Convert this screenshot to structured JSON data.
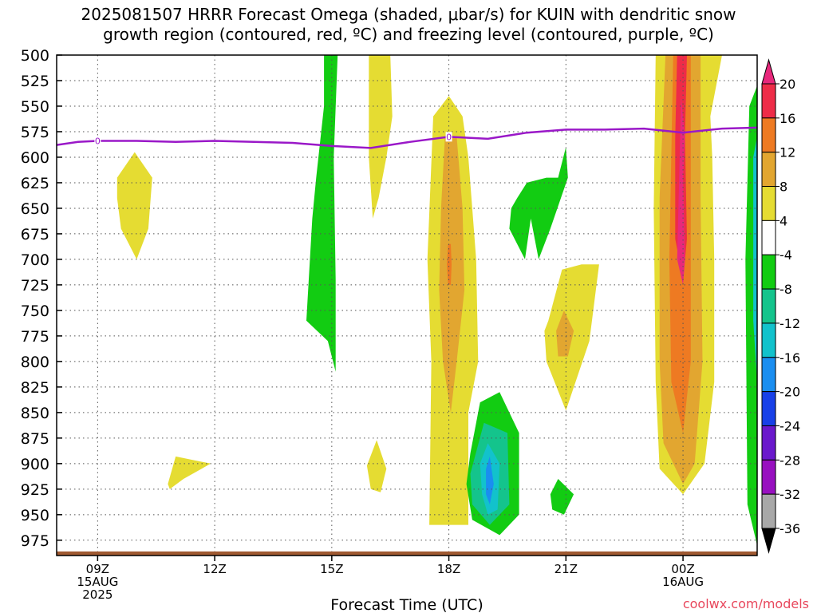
{
  "header": {
    "title_line1": "2025081507 HRRR Forecast Omega (shaded, μbar/s) for KUIN with dendritic snow",
    "title_line2": "growth region (contoured, red, ºC) and freezing level (contoured, purple, ºC)"
  },
  "footer": {
    "credit": "coolwx.com/models"
  },
  "chart_data": {
    "type": "heatmap",
    "title": "2025081507 HRRR Forecast Omega (shaded, μbar/s) for KUIN with dendritic snow growth region (contoured, red, ºC) and freezing level (contoured, purple, ºC)",
    "xlabel": "Forecast Time (UTC)",
    "ylabel": "",
    "x_range_hours": [
      7.95,
      25.9
    ],
    "ylim": [
      500,
      990
    ],
    "y_inverted": true,
    "y_ticks": [
      500,
      525,
      550,
      575,
      600,
      625,
      650,
      675,
      700,
      725,
      750,
      775,
      800,
      825,
      850,
      875,
      900,
      925,
      950,
      975
    ],
    "x_ticks": [
      {
        "hour": 9,
        "lines": [
          "09Z",
          "15AUG",
          "2025"
        ]
      },
      {
        "hour": 12,
        "lines": [
          "12Z"
        ]
      },
      {
        "hour": 15,
        "lines": [
          "15Z"
        ]
      },
      {
        "hour": 18,
        "lines": [
          "18Z"
        ]
      },
      {
        "hour": 21,
        "lines": [
          "21Z"
        ]
      },
      {
        "hour": 24,
        "lines": [
          "00Z",
          "16AUG"
        ]
      }
    ],
    "grid": true,
    "colorbar": {
      "labels": [
        "20",
        "16",
        "12",
        "8",
        "4",
        "-4",
        "-8",
        "-12",
        "-16",
        "-20",
        "-24",
        "-28",
        "-32",
        "-36"
      ],
      "bins": [
        {
          "range": [
            20,
            99
          ],
          "color": "#e8287c"
        },
        {
          "range": [
            16,
            20
          ],
          "color": "#ee2c48"
        },
        {
          "range": [
            12,
            16
          ],
          "color": "#ee7a22"
        },
        {
          "range": [
            8,
            12
          ],
          "color": "#e2a630"
        },
        {
          "range": [
            4,
            8
          ],
          "color": "#e5dc32"
        },
        {
          "range": [
            -4,
            4
          ],
          "color": "#ffffff"
        },
        {
          "range": [
            -8,
            -4
          ],
          "color": "#12cc12"
        },
        {
          "range": [
            -12,
            -8
          ],
          "color": "#14c48c"
        },
        {
          "range": [
            -16,
            -12
          ],
          "color": "#12c2cc"
        },
        {
          "range": [
            -20,
            -16
          ],
          "color": "#1a8ef0"
        },
        {
          "range": [
            -24,
            -20
          ],
          "color": "#1840e8"
        },
        {
          "range": [
            -28,
            -24
          ],
          "color": "#6a18cc"
        },
        {
          "range": [
            -32,
            -28
          ],
          "color": "#9810c0"
        },
        {
          "range": [
            -36,
            -32
          ],
          "color": "#a8a8a8"
        },
        {
          "range": [
            -99,
            -36
          ],
          "color": "#000000"
        }
      ]
    },
    "freezing_level": {
      "color": "#9a18c8",
      "label": "0",
      "label_points": [
        {
          "hour": 9.0,
          "p": 584
        },
        {
          "hour": 18.0,
          "p": 580
        }
      ],
      "points": [
        {
          "hour": 7.95,
          "p": 588
        },
        {
          "hour": 8.5,
          "p": 585
        },
        {
          "hour": 9.0,
          "p": 584
        },
        {
          "hour": 10.0,
          "p": 584
        },
        {
          "hour": 11.0,
          "p": 585
        },
        {
          "hour": 12.0,
          "p": 584
        },
        {
          "hour": 13.0,
          "p": 585
        },
        {
          "hour": 14.0,
          "p": 586
        },
        {
          "hour": 15.0,
          "p": 589
        },
        {
          "hour": 16.0,
          "p": 591
        },
        {
          "hour": 17.0,
          "p": 585
        },
        {
          "hour": 18.0,
          "p": 580
        },
        {
          "hour": 19.0,
          "p": 582
        },
        {
          "hour": 20.0,
          "p": 576
        },
        {
          "hour": 21.0,
          "p": 573
        },
        {
          "hour": 22.0,
          "p": 573
        },
        {
          "hour": 23.0,
          "p": 572
        },
        {
          "hour": 24.0,
          "p": 576
        },
        {
          "hour": 25.0,
          "p": 572
        },
        {
          "hour": 25.9,
          "p": 571
        }
      ]
    },
    "surface": {
      "color": "#a05a32",
      "p_top": 986
    },
    "omega_regions": [
      {
        "color": "#12cc12",
        "points": [
          [
            14.8,
            500
          ],
          [
            15.15,
            500
          ],
          [
            15.05,
            600
          ],
          [
            15.1,
            720
          ],
          [
            15.1,
            810
          ],
          [
            14.9,
            780
          ],
          [
            14.35,
            760
          ],
          [
            14.5,
            660
          ],
          [
            14.6,
            620
          ],
          [
            14.8,
            550
          ]
        ]
      },
      {
        "color": "#e5dc32",
        "points": [
          [
            9.5,
            620
          ],
          [
            9.95,
            595
          ],
          [
            10.4,
            620
          ],
          [
            10.3,
            670
          ],
          [
            10.0,
            700
          ],
          [
            9.6,
            670
          ],
          [
            9.5,
            640
          ]
        ]
      },
      {
        "color": "#e5dc32",
        "points": [
          [
            15.95,
            500
          ],
          [
            16.5,
            500
          ],
          [
            16.55,
            560
          ],
          [
            16.4,
            600
          ],
          [
            16.2,
            640
          ],
          [
            16.05,
            660
          ],
          [
            15.95,
            600
          ]
        ]
      },
      {
        "color": "#e5dc32",
        "points": [
          [
            10.8,
            920
          ],
          [
            11.0,
            893
          ],
          [
            11.9,
            900
          ],
          [
            11.2,
            915
          ],
          [
            10.85,
            925
          ]
        ]
      },
      {
        "color": "#e5dc32",
        "points": [
          [
            15.9,
            902
          ],
          [
            16.15,
            877
          ],
          [
            16.4,
            905
          ],
          [
            16.25,
            928
          ],
          [
            16.0,
            925
          ]
        ]
      },
      {
        "color": "#e5dc32",
        "points": [
          [
            17.6,
            560
          ],
          [
            18.0,
            540
          ],
          [
            18.35,
            560
          ],
          [
            18.5,
            600
          ],
          [
            18.7,
            700
          ],
          [
            18.75,
            800
          ],
          [
            18.5,
            850
          ],
          [
            18.5,
            960
          ],
          [
            17.5,
            960
          ],
          [
            17.55,
            800
          ],
          [
            17.45,
            700
          ]
        ]
      },
      {
        "color": "#e2a630",
        "points": [
          [
            17.9,
            580
          ],
          [
            18.2,
            580
          ],
          [
            18.35,
            650
          ],
          [
            18.4,
            730
          ],
          [
            18.2,
            800
          ],
          [
            18.05,
            850
          ],
          [
            17.85,
            800
          ],
          [
            17.75,
            730
          ],
          [
            17.8,
            650
          ]
        ]
      },
      {
        "color": "#ee7a22",
        "points": [
          [
            17.98,
            685
          ],
          [
            18.05,
            685
          ],
          [
            18.07,
            705
          ],
          [
            18.05,
            725
          ],
          [
            17.98,
            725
          ],
          [
            17.95,
            705
          ]
        ]
      },
      {
        "color": "#e5dc32",
        "points": [
          [
            20.55,
            760
          ],
          [
            20.9,
            710
          ],
          [
            21.4,
            705
          ],
          [
            21.85,
            705
          ],
          [
            21.6,
            780
          ],
          [
            21.0,
            848
          ],
          [
            20.5,
            800
          ],
          [
            20.45,
            770
          ]
        ]
      },
      {
        "color": "#e2a630",
        "points": [
          [
            20.75,
            770
          ],
          [
            20.95,
            750
          ],
          [
            21.2,
            770
          ],
          [
            21.05,
            795
          ],
          [
            20.8,
            795
          ]
        ]
      },
      {
        "color": "#12cc12",
        "points": [
          [
            18.55,
            890
          ],
          [
            18.8,
            840
          ],
          [
            19.3,
            830
          ],
          [
            19.8,
            870
          ],
          [
            19.8,
            950
          ],
          [
            19.3,
            970
          ],
          [
            18.6,
            955
          ],
          [
            18.45,
            920
          ]
        ]
      },
      {
        "color": "#14c48c",
        "points": [
          [
            18.55,
            910
          ],
          [
            18.9,
            860
          ],
          [
            19.5,
            870
          ],
          [
            19.55,
            940
          ],
          [
            19.05,
            960
          ],
          [
            18.6,
            940
          ]
        ]
      },
      {
        "color": "#12c2cc",
        "points": [
          [
            18.8,
            900
          ],
          [
            19.0,
            880
          ],
          [
            19.3,
            900
          ],
          [
            19.25,
            945
          ],
          [
            19.0,
            950
          ],
          [
            18.85,
            930
          ]
        ]
      },
      {
        "color": "#1a8ef0",
        "points": [
          [
            18.95,
            905
          ],
          [
            19.05,
            893
          ],
          [
            19.15,
            920
          ],
          [
            19.05,
            940
          ],
          [
            18.95,
            930
          ]
        ]
      },
      {
        "color": "#12cc12",
        "points": [
          [
            20.5,
            620
          ],
          [
            20.8,
            620
          ],
          [
            21.0,
            590
          ],
          [
            21.05,
            620
          ],
          [
            20.6,
            670
          ],
          [
            20.3,
            700
          ],
          [
            20.1,
            660
          ],
          [
            19.95,
            700
          ],
          [
            19.55,
            670
          ],
          [
            19.6,
            650
          ],
          [
            19.75,
            640
          ],
          [
            20.0,
            625
          ]
        ]
      },
      {
        "color": "#12cc12",
        "points": [
          [
            20.6,
            930
          ],
          [
            20.8,
            915
          ],
          [
            21.2,
            930
          ],
          [
            20.95,
            950
          ],
          [
            20.65,
            945
          ]
        ]
      },
      {
        "color": "#e5dc32",
        "points": [
          [
            23.3,
            500
          ],
          [
            25.0,
            500
          ],
          [
            24.7,
            560
          ],
          [
            24.75,
            600
          ],
          [
            24.8,
            700
          ],
          [
            24.8,
            820
          ],
          [
            24.55,
            900
          ],
          [
            24.0,
            930
          ],
          [
            23.4,
            905
          ],
          [
            23.3,
            820
          ],
          [
            23.25,
            650
          ]
        ]
      },
      {
        "color": "#e2a630",
        "points": [
          [
            23.55,
            500
          ],
          [
            24.45,
            500
          ],
          [
            24.45,
            640
          ],
          [
            24.5,
            800
          ],
          [
            24.3,
            900
          ],
          [
            24.0,
            920
          ],
          [
            23.5,
            880
          ],
          [
            23.4,
            800
          ],
          [
            23.4,
            640
          ]
        ]
      },
      {
        "color": "#ee7a22",
        "points": [
          [
            23.75,
            500
          ],
          [
            24.2,
            500
          ],
          [
            24.2,
            700
          ],
          [
            24.2,
            800
          ],
          [
            24.0,
            870
          ],
          [
            23.7,
            820
          ],
          [
            23.65,
            700
          ]
        ]
      },
      {
        "color": "#ee2c48",
        "points": [
          [
            23.85,
            500
          ],
          [
            24.1,
            500
          ],
          [
            24.05,
            580
          ],
          [
            24.1,
            680
          ],
          [
            24.0,
            720
          ],
          [
            23.8,
            680
          ],
          [
            23.8,
            580
          ]
        ]
      },
      {
        "color": "#e8287c",
        "points": [
          [
            23.95,
            540
          ],
          [
            24.05,
            580
          ],
          [
            24.0,
            620
          ],
          [
            24.05,
            700
          ],
          [
            24.0,
            725
          ],
          [
            23.85,
            700
          ],
          [
            23.9,
            620
          ]
        ]
      },
      {
        "color": "#12cc12",
        "points": [
          [
            25.7,
            550
          ],
          [
            25.9,
            530
          ],
          [
            25.9,
            980
          ],
          [
            25.65,
            940
          ],
          [
            25.6,
            700
          ]
        ]
      },
      {
        "color": "#12c2cc",
        "points": [
          [
            25.8,
            600
          ],
          [
            25.9,
            580
          ],
          [
            25.9,
            820
          ],
          [
            25.8,
            760
          ]
        ]
      }
    ]
  }
}
